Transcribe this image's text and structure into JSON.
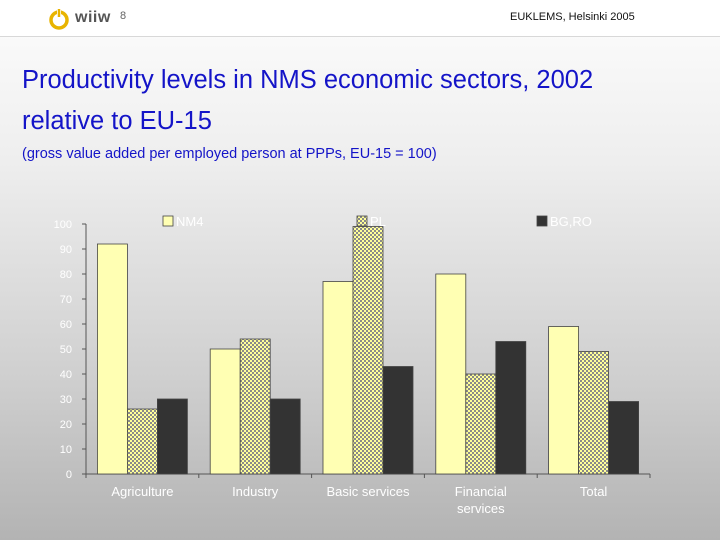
{
  "header": {
    "logo_text": "wiiw",
    "page_number": "8",
    "event": "EUKLEMS, Helsinki 2005"
  },
  "slide": {
    "title_line1": "Productivity levels in NMS economic sectors, 2002",
    "title_line2": "relative to EU-15",
    "subtitle": "(gross value added per employed person at PPPs, EU-15 = 100)"
  },
  "icons": {
    "logo": "wiiw-logo-icon"
  },
  "chart_data": {
    "type": "bar",
    "categories": [
      "Agriculture",
      "Industry",
      "Basic services",
      "Financial services",
      "Total"
    ],
    "category_lines": [
      [
        "Agriculture"
      ],
      [
        "Industry"
      ],
      [
        "Basic services"
      ],
      [
        "Financial",
        "services"
      ],
      [
        "Total"
      ]
    ],
    "series": [
      {
        "name": "NM4",
        "values": [
          92,
          50,
          77,
          80,
          59
        ],
        "color": "#ffffb3"
      },
      {
        "name": "PL",
        "values": [
          26,
          54,
          99,
          40,
          49
        ],
        "color": "#ffff99",
        "pattern": "checkered"
      },
      {
        "name": "BG,RO",
        "values": [
          30,
          30,
          43,
          53,
          29
        ],
        "color": "#333333"
      }
    ],
    "ylim": [
      0,
      100
    ],
    "yticks": [
      0,
      10,
      20,
      30,
      40,
      50,
      60,
      70,
      80,
      90,
      100
    ],
    "grid": false,
    "legend": "top"
  }
}
